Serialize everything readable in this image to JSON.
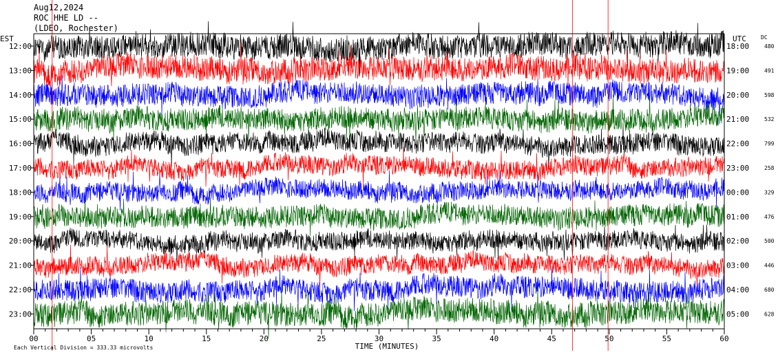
{
  "header": {
    "date": "Aug12,2024",
    "station": "ROC HHE LD --",
    "network": "(LDEO, Rochester)"
  },
  "left_axis_title": "EST",
  "right_axis_title": "UTC",
  "dc_title": "DC",
  "x_axis_title": "TIME (MINUTES)",
  "footer_note": "Each Vertical Division =  333.33 microvolts",
  "chart_data": {
    "type": "line",
    "title": "ROC HHE LD --",
    "xlabel": "TIME (MINUTES)",
    "xlim": [
      0,
      60
    ],
    "x_ticks": [
      "00",
      "05",
      "10",
      "15",
      "20",
      "25",
      "30",
      "35",
      "40",
      "45",
      "50",
      "55",
      "60"
    ],
    "rows": [
      {
        "est": "12:00",
        "utc": "18:00",
        "dc": "480",
        "color": "#000000",
        "amplitude": 0.55
      },
      {
        "est": "13:00",
        "utc": "19:00",
        "dc": "491",
        "color": "#ff0000",
        "amplitude": 0.55
      },
      {
        "est": "14:00",
        "utc": "20:00",
        "dc": "598",
        "color": "#0000ff",
        "amplitude": 0.5
      },
      {
        "est": "15:00",
        "utc": "21:00",
        "dc": "532",
        "color": "#006400",
        "amplitude": 0.5
      },
      {
        "est": "16:00",
        "utc": "22:00",
        "dc": "799",
        "color": "#000000",
        "amplitude": 0.45
      },
      {
        "est": "17:00",
        "utc": "23:00",
        "dc": "258",
        "color": "#ff0000",
        "amplitude": 0.42
      },
      {
        "est": "18:00",
        "utc": "00:00",
        "dc": "329",
        "color": "#0000ff",
        "amplitude": 0.42
      },
      {
        "est": "19:00",
        "utc": "01:00",
        "dc": "476",
        "color": "#006400",
        "amplitude": 0.48
      },
      {
        "est": "20:00",
        "utc": "02:00",
        "dc": "500",
        "color": "#000000",
        "amplitude": 0.42
      },
      {
        "est": "21:00",
        "utc": "03:00",
        "dc": "446",
        "color": "#ff0000",
        "amplitude": 0.42
      },
      {
        "est": "22:00",
        "utc": "04:00",
        "dc": "680",
        "color": "#0000ff",
        "amplitude": 0.48
      },
      {
        "est": "23:00",
        "utc": "05:00",
        "dc": "628",
        "color": "#006400",
        "amplitude": 0.55
      }
    ],
    "spikes": [
      {
        "minute": 46.8,
        "color": "#ff0000"
      },
      {
        "minute": 49.9,
        "color": "#ff0000"
      },
      {
        "minute": 1.6,
        "color": "#ff0000"
      }
    ],
    "grid": false
  }
}
